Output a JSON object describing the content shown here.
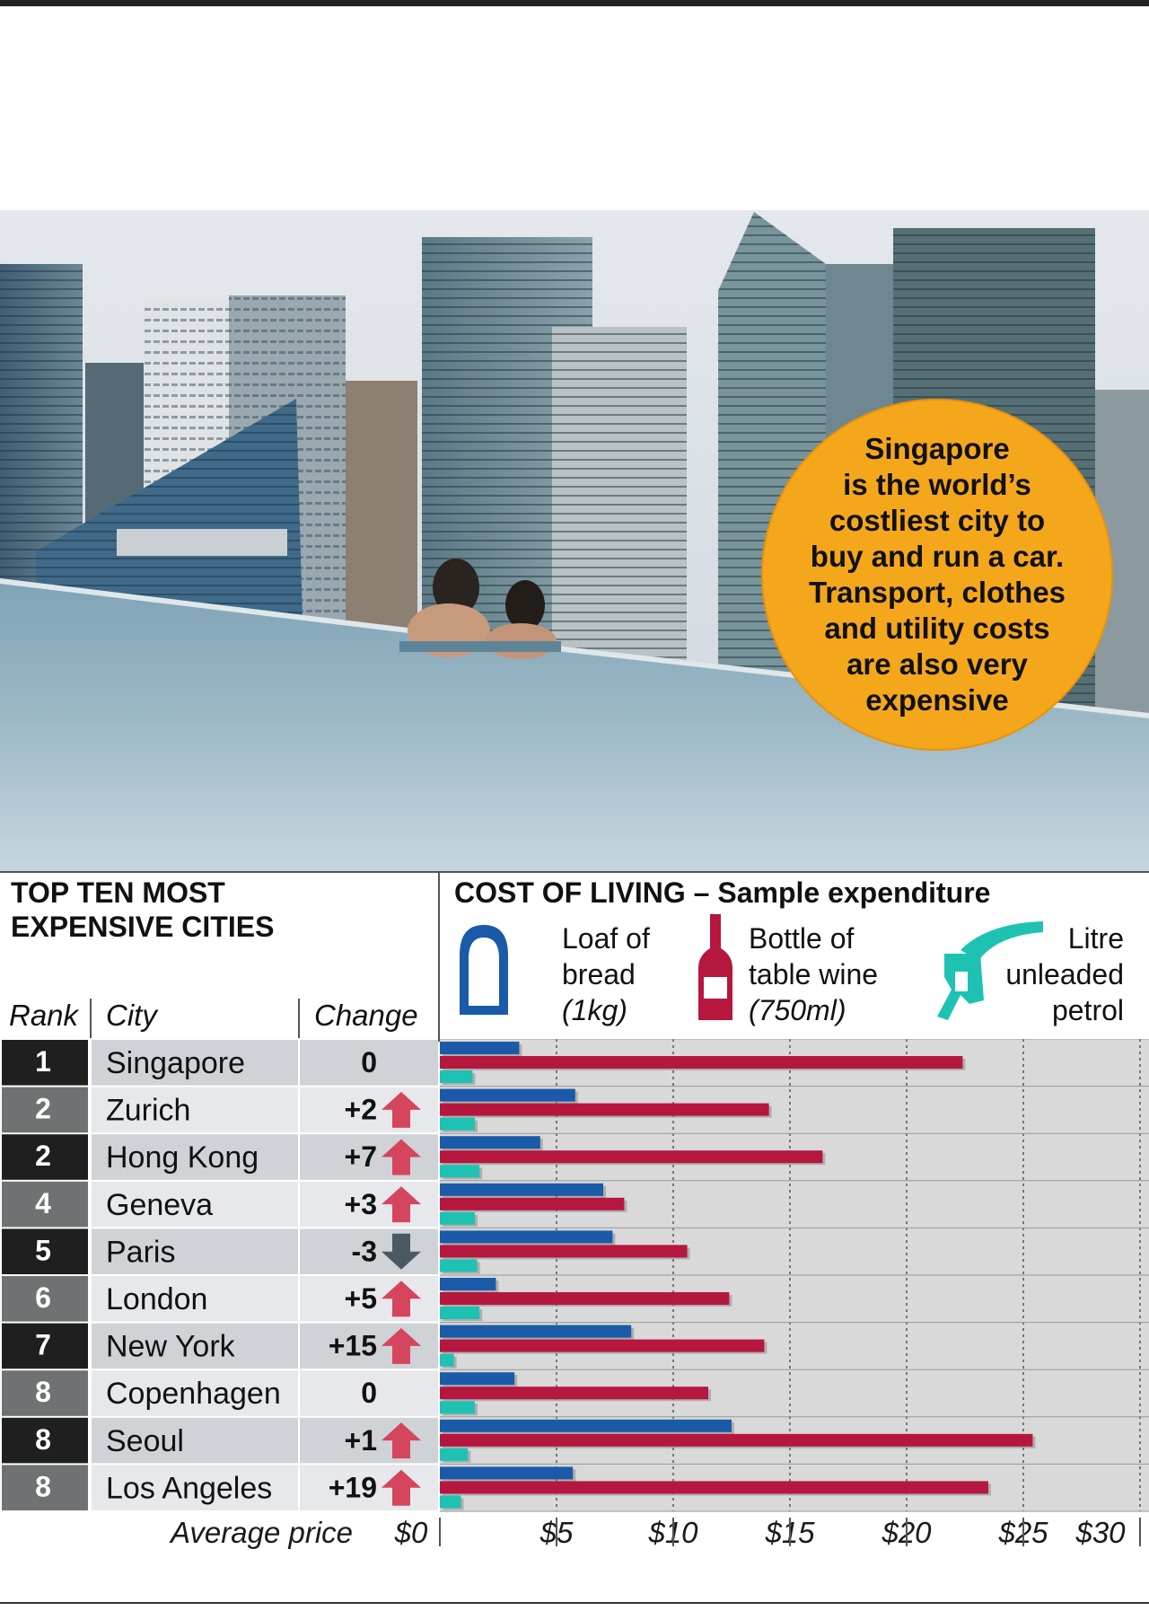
{
  "callout": {
    "text": "Singapore\nis the world’s\ncostliest city to\nbuy and run a car.\nTransport, clothes\nand utility costs\nare also very\nexpensive"
  },
  "left_title": "TOP TEN MOST\nEXPENSIVE CITIES",
  "right_title": "COST OF LIVING – Sample expenditure",
  "legend": {
    "bread": {
      "line1": "Loaf of",
      "line2": "bread",
      "line3": "(1kg)",
      "icon": "bread-icon"
    },
    "wine": {
      "line1": "Bottle of",
      "line2": "table wine",
      "line3": "(750ml)",
      "icon": "wine-bottle-icon"
    },
    "petrol": {
      "line1": "Litre",
      "line2": "unleaded",
      "line3": "petrol",
      "icon": "fuel-nozzle-icon"
    }
  },
  "headers": {
    "rank": "Rank",
    "city": "City",
    "change": "Change"
  },
  "colors": {
    "bread": "#1a5aa8",
    "wine": "#b5173e",
    "petrol": "#1ec2b3",
    "up_arrow": "#d6455e",
    "down_arrow": "#4a5a63",
    "callout": "#f5a71c"
  },
  "chart_data": {
    "type": "bar",
    "orientation": "horizontal",
    "title": "COST OF LIVING – Sample expenditure",
    "xlabel": "Average price",
    "xlim": [
      0,
      30
    ],
    "xticks": [
      "$0",
      "$5",
      "$10",
      "$15",
      "$20",
      "$25",
      "$30"
    ],
    "grid": true,
    "categories": [
      "Singapore",
      "Zurich",
      "Hong Kong",
      "Geneva",
      "Paris",
      "London",
      "New York",
      "Copenhagen",
      "Seoul",
      "Los Angeles"
    ],
    "ranks": [
      "1",
      "2",
      "2",
      "4",
      "5",
      "6",
      "7",
      "8",
      "8",
      "8"
    ],
    "changes": [
      "0",
      "+2",
      "+7",
      "+3",
      "-3",
      "+5",
      "+15",
      "0",
      "+1",
      "+19"
    ],
    "directions": [
      "none",
      "up",
      "up",
      "up",
      "down",
      "up",
      "up",
      "none",
      "up",
      "up"
    ],
    "series": [
      {
        "name": "Loaf of bread (1kg)",
        "values": [
          3.4,
          5.8,
          4.3,
          7.0,
          7.4,
          2.4,
          8.2,
          3.2,
          12.5,
          5.7
        ]
      },
      {
        "name": "Bottle of table wine (750ml)",
        "values": [
          22.4,
          14.1,
          16.4,
          7.9,
          10.6,
          12.4,
          13.9,
          11.5,
          25.4,
          23.5
        ]
      },
      {
        "name": "Litre unleaded petrol",
        "values": [
          1.4,
          1.5,
          1.7,
          1.5,
          1.6,
          1.7,
          0.6,
          1.5,
          1.2,
          0.9
        ]
      }
    ]
  }
}
